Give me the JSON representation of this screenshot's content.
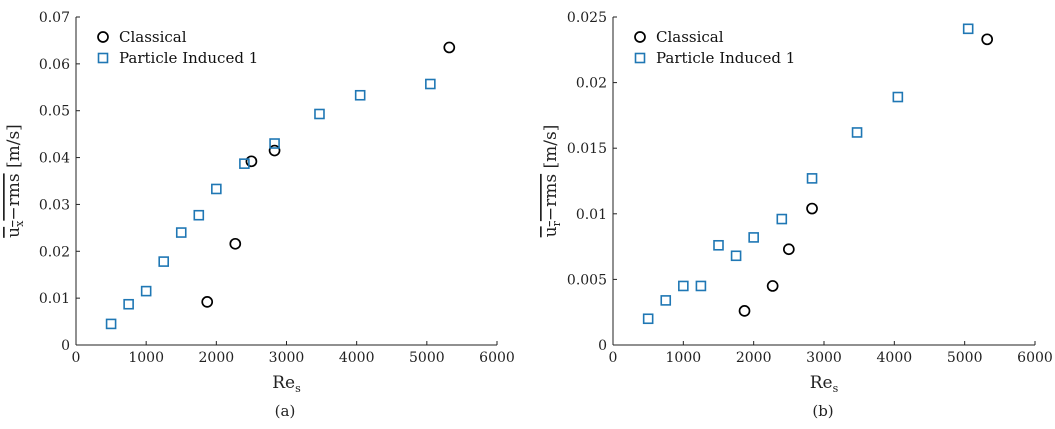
{
  "chart_data": [
    {
      "type": "scatter",
      "caption": "(a)",
      "xlabel_main": "Re",
      "xlabel_sub": "s",
      "ylabel_main": "u",
      "ylabel_sub": "x",
      "ylabel_rest": "−rms",
      "ylabel_unit": "[m/s]",
      "xlim": [
        0,
        6000
      ],
      "ylim": [
        0,
        0.07
      ],
      "xticks": [
        "0",
        "1000",
        "2000",
        "3000",
        "4000",
        "5000",
        "6000"
      ],
      "yticks": [
        "0",
        "0.01",
        "0.02",
        "0.03",
        "0.04",
        "0.05",
        "0.06",
        "0.07"
      ],
      "legend_position": "top-left",
      "series": [
        {
          "name": "Classical",
          "marker": "circle",
          "color": "#000000",
          "x": [
            1870,
            2270,
            2500,
            2830,
            5320
          ],
          "y": [
            0.0092,
            0.0216,
            0.0392,
            0.0415,
            0.0635
          ]
        },
        {
          "name": "Particle Induced 1",
          "marker": "square",
          "color": "#1f77b4",
          "x": [
            500,
            750,
            1000,
            1250,
            1500,
            1750,
            2000,
            2400,
            2830,
            3470,
            4050,
            5050
          ],
          "y": [
            0.0045,
            0.0087,
            0.0115,
            0.0178,
            0.024,
            0.0277,
            0.0333,
            0.0387,
            0.043,
            0.0493,
            0.0533,
            0.0557
          ]
        }
      ]
    },
    {
      "type": "scatter",
      "caption": "(b)",
      "xlabel_main": "Re",
      "xlabel_sub": "s",
      "ylabel_main": "u",
      "ylabel_sub": "r",
      "ylabel_rest": "−rms",
      "ylabel_unit": "[m/s]",
      "xlim": [
        0,
        6000
      ],
      "ylim": [
        0,
        0.025
      ],
      "xticks": [
        "0",
        "1000",
        "2000",
        "3000",
        "4000",
        "5000",
        "6000"
      ],
      "yticks": [
        "0",
        "0.005",
        "0.01",
        "0.015",
        "0.02",
        "0.025"
      ],
      "legend_position": "top-left",
      "series": [
        {
          "name": "Classical",
          "marker": "circle",
          "color": "#000000",
          "x": [
            1870,
            2270,
            2500,
            2830,
            5320
          ],
          "y": [
            0.0026,
            0.0045,
            0.0073,
            0.0104,
            0.0233
          ]
        },
        {
          "name": "Particle Induced 1",
          "marker": "square",
          "color": "#1f77b4",
          "x": [
            500,
            750,
            1000,
            1250,
            1500,
            1750,
            2000,
            2400,
            2830,
            3470,
            4050,
            5050
          ],
          "y": [
            0.002,
            0.0034,
            0.0045,
            0.0045,
            0.0076,
            0.0068,
            0.0082,
            0.0096,
            0.0127,
            0.0162,
            0.0189,
            0.0241
          ]
        }
      ]
    }
  ]
}
